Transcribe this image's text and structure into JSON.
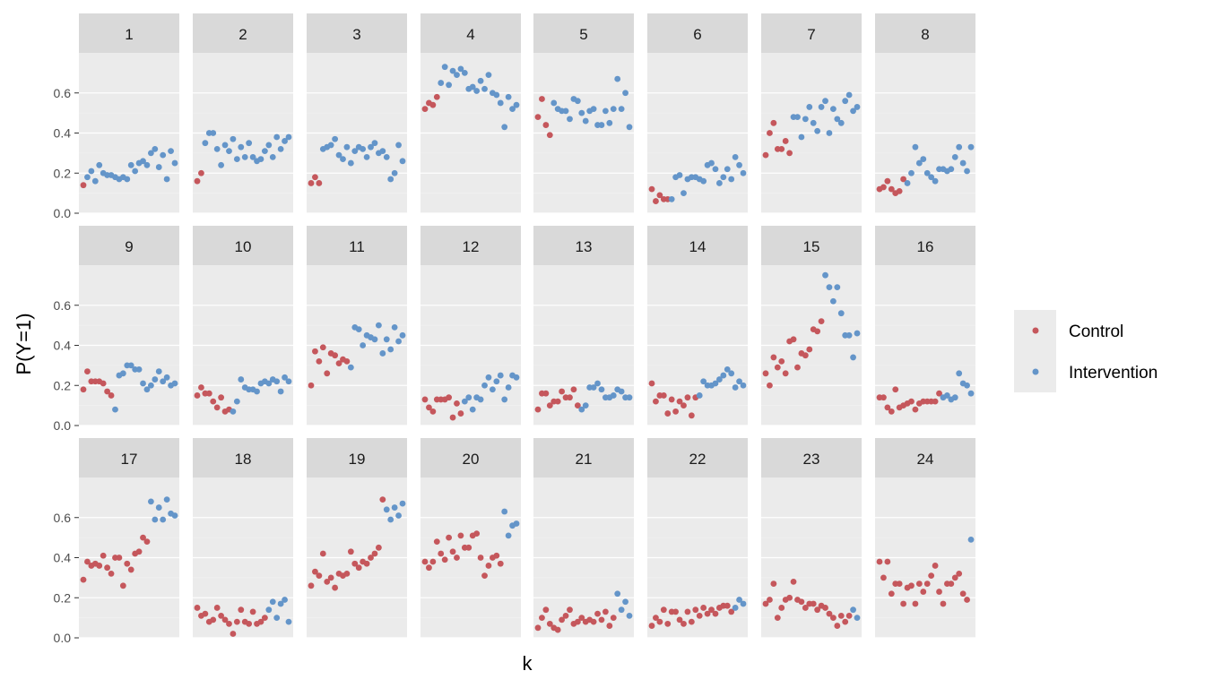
{
  "chart_data": {
    "type": "scatter",
    "title": "",
    "xlabel": "k",
    "ylabel": "P(Y=1)",
    "ylim": [
      0,
      0.8
    ],
    "yticks": [
      "0.0",
      "0.2",
      "0.4",
      "0.6"
    ],
    "ytick_values": [
      0,
      0.2,
      0.4,
      0.6
    ],
    "x_range": [
      1,
      24
    ],
    "grid": true,
    "legend": {
      "position": "right",
      "entries": [
        {
          "name": "Control",
          "color": "#C5575C"
        },
        {
          "name": "Intervention",
          "color": "#6495C9"
        }
      ]
    },
    "panels": [
      {
        "label": "1",
        "switch": 2,
        "y": [
          0.14,
          0.18,
          0.21,
          0.16,
          0.24,
          0.2,
          0.19,
          0.19,
          0.18,
          0.17,
          0.18,
          0.17,
          0.24,
          0.21,
          0.25,
          0.26,
          0.24,
          0.3,
          0.32,
          0.23,
          0.29,
          0.17,
          0.31,
          0.25
        ]
      },
      {
        "label": "2",
        "switch": 3,
        "y": [
          0.16,
          0.2,
          0.35,
          0.4,
          0.4,
          0.32,
          0.24,
          0.34,
          0.31,
          0.37,
          0.27,
          0.33,
          0.28,
          0.35,
          0.28,
          0.26,
          0.27,
          0.31,
          0.34,
          0.28,
          0.38,
          0.32,
          0.36,
          0.38
        ]
      },
      {
        "label": "3",
        "switch": 4,
        "y": [
          0.15,
          0.18,
          0.15,
          0.32,
          0.33,
          0.34,
          0.37,
          0.29,
          0.27,
          0.33,
          0.25,
          0.31,
          0.33,
          0.32,
          0.28,
          0.33,
          0.35,
          0.3,
          0.31,
          0.28,
          0.17,
          0.2,
          0.34,
          0.26
        ]
      },
      {
        "label": "4",
        "switch": 5,
        "y": [
          0.52,
          0.55,
          0.54,
          0.58,
          0.65,
          0.73,
          0.64,
          0.71,
          0.69,
          0.72,
          0.7,
          0.62,
          0.63,
          0.61,
          0.66,
          0.62,
          0.69,
          0.6,
          0.59,
          0.55,
          0.43,
          0.58,
          0.52,
          0.54
        ]
      },
      {
        "label": "5",
        "switch": 5,
        "y": [
          0.48,
          0.57,
          0.44,
          0.39,
          0.55,
          0.52,
          0.51,
          0.51,
          0.47,
          0.57,
          0.56,
          0.5,
          0.46,
          0.51,
          0.52,
          0.44,
          0.44,
          0.51,
          0.45,
          0.52,
          0.67,
          0.52,
          0.6,
          0.43
        ]
      },
      {
        "label": "6",
        "switch": 6,
        "y": [
          0.12,
          0.06,
          0.09,
          0.07,
          0.07,
          0.07,
          0.18,
          0.19,
          0.1,
          0.17,
          0.18,
          0.18,
          0.17,
          0.16,
          0.24,
          0.25,
          0.22,
          0.15,
          0.18,
          0.22,
          0.17,
          0.28,
          0.24,
          0.2
        ]
      },
      {
        "label": "7",
        "switch": 8,
        "y": [
          0.29,
          0.4,
          0.45,
          0.32,
          0.32,
          0.36,
          0.3,
          0.48,
          0.48,
          0.38,
          0.47,
          0.53,
          0.45,
          0.41,
          0.53,
          0.56,
          0.4,
          0.52,
          0.47,
          0.45,
          0.56,
          0.59,
          0.51,
          0.53
        ]
      },
      {
        "label": "8",
        "switch": 8,
        "y": [
          0.12,
          0.13,
          0.16,
          0.12,
          0.1,
          0.11,
          0.17,
          0.15,
          0.2,
          0.33,
          0.25,
          0.27,
          0.2,
          0.18,
          0.16,
          0.22,
          0.22,
          0.21,
          0.22,
          0.28,
          0.33,
          0.25,
          0.21,
          0.33
        ]
      },
      {
        "label": "9",
        "switch": 9,
        "y": [
          0.18,
          0.27,
          0.22,
          0.22,
          0.22,
          0.21,
          0.17,
          0.15,
          0.08,
          0.25,
          0.26,
          0.3,
          0.3,
          0.28,
          0.28,
          0.21,
          0.18,
          0.2,
          0.23,
          0.27,
          0.22,
          0.24,
          0.2,
          0.21
        ]
      },
      {
        "label": "10",
        "switch": 10,
        "y": [
          0.15,
          0.19,
          0.16,
          0.16,
          0.12,
          0.09,
          0.14,
          0.07,
          0.08,
          0.07,
          0.12,
          0.23,
          0.19,
          0.18,
          0.18,
          0.17,
          0.21,
          0.22,
          0.21,
          0.23,
          0.22,
          0.17,
          0.24,
          0.22
        ]
      },
      {
        "label": "11",
        "switch": 11,
        "y": [
          0.2,
          0.37,
          0.32,
          0.39,
          0.26,
          0.36,
          0.35,
          0.31,
          0.33,
          0.32,
          0.29,
          0.49,
          0.48,
          0.4,
          0.45,
          0.44,
          0.43,
          0.5,
          0.36,
          0.43,
          0.38,
          0.49,
          0.42,
          0.45
        ]
      },
      {
        "label": "12",
        "switch": 11,
        "y": [
          0.13,
          0.09,
          0.07,
          0.13,
          0.13,
          0.13,
          0.14,
          0.04,
          0.11,
          0.06,
          0.12,
          0.14,
          0.08,
          0.14,
          0.13,
          0.2,
          0.24,
          0.18,
          0.22,
          0.25,
          0.13,
          0.19,
          0.25,
          0.24
        ]
      },
      {
        "label": "13",
        "switch": 12,
        "y": [
          0.08,
          0.16,
          0.16,
          0.1,
          0.12,
          0.12,
          0.17,
          0.14,
          0.14,
          0.18,
          0.1,
          0.08,
          0.1,
          0.19,
          0.19,
          0.21,
          0.18,
          0.14,
          0.14,
          0.15,
          0.18,
          0.17,
          0.14,
          0.14
        ]
      },
      {
        "label": "14",
        "switch": 13,
        "y": [
          0.21,
          0.12,
          0.15,
          0.15,
          0.06,
          0.13,
          0.07,
          0.12,
          0.1,
          0.14,
          0.05,
          0.14,
          0.15,
          0.22,
          0.2,
          0.2,
          0.21,
          0.23,
          0.25,
          0.28,
          0.26,
          0.19,
          0.22,
          0.2
        ]
      },
      {
        "label": "15",
        "switch": 16,
        "y": [
          0.26,
          0.2,
          0.34,
          0.29,
          0.32,
          0.26,
          0.42,
          0.43,
          0.29,
          0.36,
          0.35,
          0.38,
          0.48,
          0.47,
          0.52,
          0.75,
          0.69,
          0.62,
          0.69,
          0.56,
          0.45,
          0.45,
          0.34,
          0.46
        ]
      },
      {
        "label": "16",
        "switch": 17,
        "y": [
          0.14,
          0.14,
          0.09,
          0.07,
          0.18,
          0.09,
          0.1,
          0.11,
          0.12,
          0.08,
          0.11,
          0.12,
          0.12,
          0.12,
          0.12,
          0.16,
          0.14,
          0.15,
          0.13,
          0.14,
          0.26,
          0.21,
          0.2,
          0.16
        ]
      },
      {
        "label": "17",
        "switch": 18,
        "y": [
          0.29,
          0.38,
          0.36,
          0.37,
          0.36,
          0.41,
          0.35,
          0.32,
          0.4,
          0.4,
          0.26,
          0.37,
          0.34,
          0.42,
          0.43,
          0.5,
          0.48,
          0.68,
          0.59,
          0.65,
          0.59,
          0.69,
          0.62,
          0.61
        ]
      },
      {
        "label": "18",
        "switch": 19,
        "y": [
          0.15,
          0.11,
          0.12,
          0.08,
          0.09,
          0.15,
          0.11,
          0.09,
          0.07,
          0.02,
          0.08,
          0.14,
          0.08,
          0.07,
          0.13,
          0.07,
          0.08,
          0.1,
          0.14,
          0.18,
          0.1,
          0.17,
          0.19,
          0.08
        ]
      },
      {
        "label": "19",
        "switch": 20,
        "y": [
          0.26,
          0.33,
          0.31,
          0.42,
          0.28,
          0.3,
          0.25,
          0.32,
          0.31,
          0.32,
          0.43,
          0.37,
          0.35,
          0.38,
          0.37,
          0.4,
          0.42,
          0.45,
          0.69,
          0.64,
          0.59,
          0.65,
          0.61,
          0.67
        ]
      },
      {
        "label": "20",
        "switch": 21,
        "y": [
          0.38,
          0.35,
          0.38,
          0.48,
          0.42,
          0.39,
          0.5,
          0.43,
          0.4,
          0.51,
          0.45,
          0.45,
          0.51,
          0.52,
          0.4,
          0.31,
          0.36,
          0.4,
          0.41,
          0.37,
          0.63,
          0.51,
          0.56,
          0.57
        ]
      },
      {
        "label": "21",
        "switch": 21,
        "y": [
          0.05,
          0.1,
          0.14,
          0.07,
          0.05,
          0.04,
          0.09,
          0.11,
          0.14,
          0.07,
          0.08,
          0.1,
          0.08,
          0.09,
          0.08,
          0.12,
          0.09,
          0.13,
          0.06,
          0.1,
          0.22,
          0.14,
          0.18,
          0.11
        ]
      },
      {
        "label": "22",
        "switch": 22,
        "y": [
          0.06,
          0.1,
          0.08,
          0.14,
          0.07,
          0.13,
          0.13,
          0.09,
          0.07,
          0.13,
          0.08,
          0.14,
          0.11,
          0.15,
          0.12,
          0.14,
          0.12,
          0.15,
          0.16,
          0.16,
          0.13,
          0.15,
          0.19,
          0.17
        ]
      },
      {
        "label": "23",
        "switch": 23,
        "y": [
          0.17,
          0.19,
          0.27,
          0.1,
          0.15,
          0.19,
          0.2,
          0.28,
          0.19,
          0.18,
          0.15,
          0.17,
          0.17,
          0.14,
          0.16,
          0.15,
          0.12,
          0.1,
          0.06,
          0.11,
          0.08,
          0.11,
          0.14,
          0.1
        ]
      },
      {
        "label": "24",
        "switch": 24,
        "y": [
          0.38,
          0.3,
          0.38,
          0.22,
          0.27,
          0.27,
          0.17,
          0.25,
          0.26,
          0.17,
          0.27,
          0.23,
          0.27,
          0.31,
          0.36,
          0.23,
          0.17,
          0.27,
          0.27,
          0.3,
          0.32,
          0.22,
          0.19,
          0.49
        ]
      }
    ]
  }
}
